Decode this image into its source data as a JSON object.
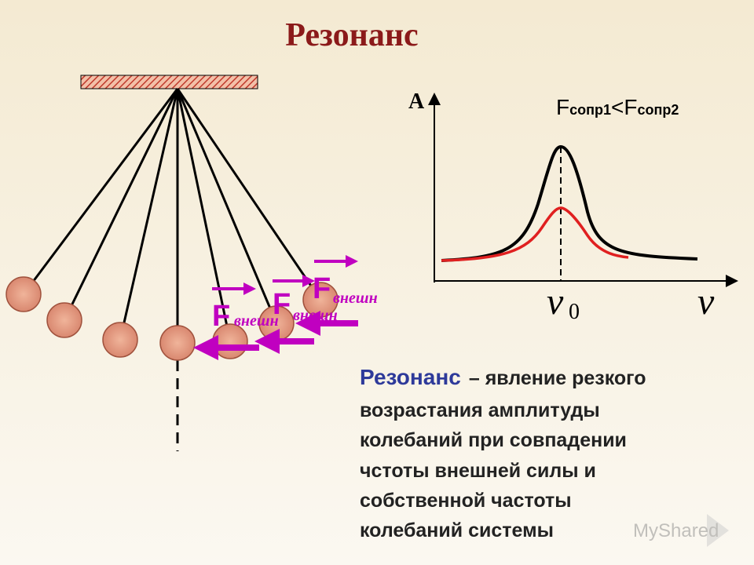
{
  "title": "Резонанс",
  "graph": {
    "y_label": "A",
    "x_label": "ν",
    "peak_label": "ν",
    "peak_sub": "0",
    "legend": {
      "f1": "F",
      "s1": "сопр1",
      "op": "<",
      "f2": "F",
      "s2": "сопр2"
    }
  },
  "forces": [
    {
      "symbol": "F",
      "sub": "внешн"
    },
    {
      "symbol": "F",
      "sub": "внешн"
    },
    {
      "symbol": "F",
      "sub": "внешн"
    }
  ],
  "definition": {
    "term": "Резонанс",
    "lines": [
      "– явление резкого",
      "возрастания амплитуды",
      "колебаний при совпадении",
      "чстоты внешней силы и",
      "собственной частоты",
      "колебаний системы"
    ]
  },
  "watermark": "MyShared"
}
